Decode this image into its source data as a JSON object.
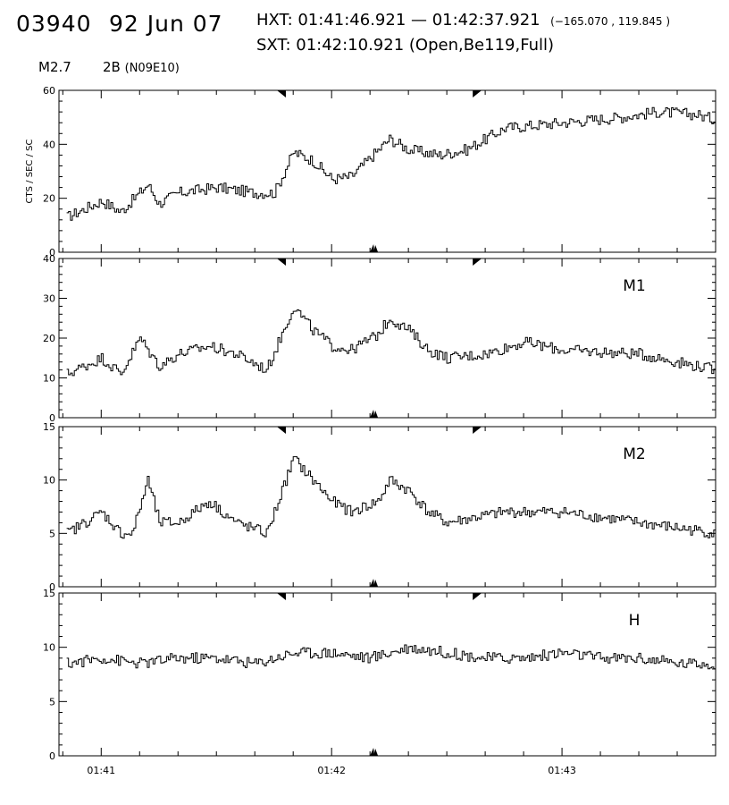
{
  "header": {
    "event_id": "03940",
    "date": "92 Jun 07",
    "hxt_label": "HXT: 01:41:46.921 — 01:42:37.921",
    "hxt_coords": "(−165.070 , 119.845 )",
    "sxt_label": "SXT: 01:42:10.921 (Open,Be119,Full)",
    "goes_class": "M2.7",
    "flare_class": "2B",
    "flare_location": "(N09E10)"
  },
  "chart_data": [
    {
      "type": "line",
      "title": "",
      "ylabel": "CTS / SEC / SC",
      "xlabel": "",
      "ylim": [
        0,
        60
      ],
      "yticks": [
        "0",
        "20",
        "40",
        "60"
      ],
      "panel_label": "",
      "xlim": [
        "01:40:49",
        "01:43:40"
      ],
      "series": [
        {
          "x": [
            "01:40:51",
            "01:41:00",
            "01:41:05",
            "01:41:12",
            "01:41:15",
            "01:41:20",
            "01:41:30",
            "01:41:40",
            "01:41:45",
            "01:41:50",
            "01:41:55",
            "01:42:00",
            "01:42:05",
            "01:42:15",
            "01:42:20",
            "01:42:28",
            "01:42:35",
            "01:42:45",
            "01:43:00",
            "01:43:15",
            "01:43:25",
            "01:43:35",
            "01:43:40"
          ],
          "values": [
            13,
            19,
            15,
            25,
            18,
            22,
            24,
            22,
            22,
            37,
            34,
            27,
            28,
            42,
            38,
            36,
            38,
            46,
            48,
            50,
            52,
            51,
            49
          ]
        }
      ]
    },
    {
      "type": "line",
      "title": "",
      "ylabel": "",
      "xlabel": "",
      "ylim": [
        0,
        40
      ],
      "yticks": [
        "0",
        "10",
        "20",
        "30",
        "40"
      ],
      "panel_label": "M1",
      "xlim": [
        "01:40:49",
        "01:43:40"
      ],
      "series": [
        {
          "x": [
            "01:40:51",
            "01:41:00",
            "01:41:05",
            "01:41:10",
            "01:41:12",
            "01:41:15",
            "01:41:20",
            "01:41:28",
            "01:41:35",
            "01:41:43",
            "01:41:50",
            "01:41:55",
            "01:42:00",
            "01:42:05",
            "01:42:12",
            "01:42:15",
            "01:42:20",
            "01:42:25",
            "01:42:30",
            "01:42:40",
            "01:42:50",
            "01:43:00",
            "01:43:20",
            "01:43:40"
          ],
          "values": [
            11,
            15,
            11,
            20,
            17,
            13,
            16,
            18,
            16,
            12,
            28,
            22,
            18,
            17,
            21,
            25,
            22,
            17,
            15,
            16,
            19,
            17,
            16,
            12
          ]
        }
      ]
    },
    {
      "type": "line",
      "title": "",
      "ylabel": "",
      "xlabel": "",
      "ylim": [
        0,
        15
      ],
      "yticks": [
        "0",
        "5",
        "10",
        "15"
      ],
      "panel_label": "M2",
      "xlim": [
        "01:40:49",
        "01:43:40"
      ],
      "series": [
        {
          "x": [
            "01:40:51",
            "01:41:00",
            "01:41:05",
            "01:41:08",
            "01:41:12",
            "01:41:15",
            "01:41:20",
            "01:41:28",
            "01:41:35",
            "01:41:43",
            "01:41:50",
            "01:41:55",
            "01:42:00",
            "01:42:05",
            "01:42:12",
            "01:42:15",
            "01:42:20",
            "01:42:25",
            "01:42:30",
            "01:42:45",
            "01:43:00",
            "01:43:20",
            "01:43:40"
          ],
          "values": [
            5,
            7,
            5,
            5,
            10,
            6,
            6,
            8,
            6,
            5,
            12,
            10,
            8,
            7,
            8,
            10,
            9,
            7,
            6,
            7,
            7,
            6,
            5
          ]
        }
      ]
    },
    {
      "type": "line",
      "title": "",
      "ylabel": "",
      "xlabel": "",
      "ylim": [
        0,
        15
      ],
      "yticks": [
        "0",
        "5",
        "10",
        "15"
      ],
      "panel_label": "H",
      "xlim": [
        "01:40:49",
        "01:43:40"
      ],
      "xticks": [
        "01:41",
        "01:42",
        "01:43"
      ],
      "series": [
        {
          "x": [
            "01:40:51",
            "01:41:00",
            "01:41:10",
            "01:41:20",
            "01:41:30",
            "01:41:40",
            "01:41:50",
            "01:42:00",
            "01:42:10",
            "01:42:20",
            "01:42:30",
            "01:42:40",
            "01:42:50",
            "01:43:00",
            "01:43:10",
            "01:43:20",
            "01:43:30",
            "01:43:40"
          ],
          "values": [
            8.5,
            9,
            8.5,
            9,
            9,
            8.5,
            9.5,
            9.5,
            9,
            10,
            9.5,
            9,
            9,
            9.5,
            9,
            9,
            8.5,
            8.5
          ]
        }
      ]
    }
  ]
}
